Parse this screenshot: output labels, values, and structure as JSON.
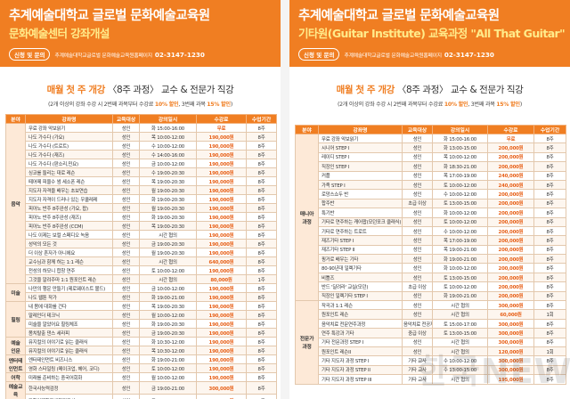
{
  "left": {
    "title": "추계예술대학교 글로벌 문화예술교육원",
    "subtitle": "문화예술센터 강좌개설",
    "contact_label": "신청 및 문의",
    "contact_text": "추계예술대학교글로벌 문화예술교육원홈페이지",
    "contact_phone": "02-3147-1230",
    "headline_em": "매월 첫 주 개강",
    "headline_rest": "〈8주 과정〉 교수 & 전문가 직강",
    "note_a": "(2개 이상의 강좌 수강 시 2번째 과목부터 수강료 ",
    "note_b": "10% 할인",
    "note_c": ", 3번째 과목 ",
    "note_d": "15% 할인",
    "note_e": ")",
    "headers": [
      "분야",
      "강좌명",
      "교육대상",
      "강의일시",
      "수강료",
      "수업기간"
    ],
    "sections": [
      {
        "category": "음악",
        "rows": [
          [
            "무료 강좌 악보읽기",
            "성인",
            "화 15:00-16:00",
            "무료",
            "8주"
          ],
          [
            "나도 가수다 (가요)",
            "성인",
            "목 10:00-12:00",
            "190,000원",
            "8주"
          ],
          [
            "나도 가수다 (트로트)",
            "성인",
            "수 10:00-12:00",
            "190,000원",
            "8주"
          ],
          [
            "나도 가수다 (재즈)",
            "성인",
            "수 14:00-16:00",
            "190,000원",
            "8주"
          ],
          [
            "나도 가수다 (판소리,민요)",
            "성인",
            "금 10:00-12:00",
            "190,000원",
            "8주"
          ],
          [
            "싱코를 들리는 대로 레슨",
            "성인",
            "수 19:00-20:30",
            "190,000원",
            "8주"
          ],
          [
            "떼어떼 피울수 썸 세소폰 레슨",
            "성인",
            "목 19:00-20:30",
            "190,000원",
            "8주"
          ],
          [
            "지도자 자격을 배우는 초보연습",
            "성인",
            "월 19:00-20:30",
            "190,000원",
            "8주"
          ],
          [
            "지도자 자격이 드러나 있는 우쿨레레",
            "성인",
            "화 19:00-20:30",
            "190,000원",
            "8주"
          ],
          [
            "피아노 반주 8주완성 (가요, 팝)",
            "성인",
            "월 19:00-20:30",
            "190,000원",
            "8주"
          ],
          [
            "피아노 반주 8주완성 (재즈)",
            "성인",
            "화 19:00-20:30",
            "190,000원",
            "8주"
          ],
          [
            "피아노 반주 8주완성 (CCM)",
            "성인",
            "목 19:00-20:30",
            "190,000원",
            "8주"
          ],
          [
            "나도 이제는 보컬 스페디오 녹음",
            "성인",
            "시간 협의",
            "190,000원",
            "8주"
          ],
          [
            "성악의 모든 것",
            "성인",
            "금 19:00-20:30",
            "190,000원",
            "8주"
          ],
          [
            "더 이상 혼자가 아니에요",
            "성인",
            "월 19:00-20:30",
            "190,000원",
            "8주"
          ],
          [
            "교수님과 함께 하는 1:1 레슨",
            "성인",
            "시간 협의",
            "640,000원",
            "8주"
          ],
          [
            "전성의 하모니 합창 연주",
            "성인",
            "토 10:00-12:00",
            "190,000원",
            "8주"
          ],
          [
            "그것을 알려주마 1:1 원포인트 레슨",
            "성인",
            "시간 협의",
            "80,000원",
            "1주"
          ]
        ]
      },
      {
        "category": "미술",
        "rows": [
          [
            "나만의 행운 만들기 (제로웨이스트 볼드)",
            "성인",
            "금 10:00-12:00",
            "190,000원",
            "8주"
          ],
          [
            "나도 웹툰 작가",
            "성인",
            "화 19:00-21:00",
            "190,000원",
            "8주"
          ]
        ]
      },
      {
        "category": "힐링",
        "rows": [
          [
            "내 몸에 대화를 건다",
            "성인",
            "목 19:00-20:30",
            "190,000원",
            "8주"
          ],
          [
            "말레인더 테크닉",
            "성인",
            "월 10:00-12:00",
            "190,000원",
            "8주"
          ],
          [
            "미술을 알았어요 힐링체조",
            "성인",
            "화 19:00-20:30",
            "190,000원",
            "8주"
          ],
          [
            "몸치탈출 댄스 세라피",
            "성인",
            "금 19:00-20:30",
            "190,000원",
            "8주"
          ]
        ]
      },
      {
        "category": "예술\n인문",
        "rows": [
          [
            "뮤지컬의 이야기로 읽는 클래식",
            "성인",
            "화 10:30-12:00",
            "190,000원",
            "8주"
          ],
          [
            "뮤지컬의 이야기로 읽는 클래식",
            "성인",
            "목 10:30-12:00",
            "190,000원",
            "8주"
          ]
        ]
      },
      {
        "category": "엔터테인먼트",
        "rows": [
          [
            "엔터테인먼트 비즈니스",
            "성인",
            "화 19:00-21:00",
            "190,000원",
            "8주"
          ],
          [
            "영화 스타일링 (메이크업, 헤어, 코디)",
            "성인",
            "토 10:00-12:00",
            "190,000원",
            "8주"
          ]
        ]
      },
      {
        "category": "어학",
        "rows": [
          [
            "미래를 준비하는 중국어회화",
            "성인",
            "월 10:00-12:00",
            "190,000원",
            "8주"
          ]
        ]
      },
      {
        "category": "예술교육\n자격증",
        "rows": [
          [
            "한국사능력검정",
            "성인",
            "금 19:00-21:00",
            "300,000원",
            "8주"
          ],
          [
            "과학영재창작체험지도사",
            "성인",
            "토 10:00-12:00",
            "300,000원",
            "8주"
          ]
        ]
      }
    ]
  },
  "right": {
    "title": "추계예술대학교 글로벌 문화예술교육원",
    "subtitle": "기타원(Guitar Institute) 교육과정 \"All That Guitar\"",
    "contact_label": "신청 및 문의",
    "contact_text": "추계예술대학교글로벌 문화예술교육원홈페이지",
    "contact_phone": "02-3147-1230",
    "headline_em": "매월 첫 주 개강",
    "headline_rest": "〈8주 과정〉 교수 & 전문가 직강",
    "note_a": "(2개 이상의 강좌 수강 시 2번째 과목부터 수강료 ",
    "note_b": "10% 할인",
    "note_c": ", 3번째 과목 ",
    "note_d": "15% 할인",
    "note_e": ")",
    "headers": [
      "분야",
      "강좌명",
      "교육대상",
      "강의일시",
      "수강료",
      "수업기간"
    ],
    "sections": [
      {
        "category": "매니아\n과정",
        "rows": [
          [
            "무료 강좌 악보읽기",
            "성인",
            "화 15:00-16:00",
            "무료",
            "8주"
          ],
          [
            "시니어 STEP I",
            "성인",
            "화 13:00-15:00",
            "200,000원",
            "8주"
          ],
          [
            "레이디 STEP I",
            "성인",
            "목 10:00-12:00",
            "200,000원",
            "8주"
          ],
          [
            "직장인 STEP I",
            "성인",
            "화 18:30-21:00",
            "200,000원",
            "8주"
          ],
          [
            "커플",
            "성인",
            "목 17:00-19:00",
            "240,000원",
            "8주"
          ],
          [
            "가족 STEP I",
            "성인",
            "토 10:00-12:00",
            "240,000원",
            "8주"
          ],
          [
            "로망스쇼두 반",
            "성인",
            "수 10:00-12:00",
            "200,000원",
            "8주"
          ],
          [
            "합주반",
            "초급 이상",
            "토 13:00-15:00",
            "200,000원",
            "8주"
          ],
          [
            "특기반",
            "성인",
            "화 10:00-12:00",
            "200,000원",
            "8주"
          ],
          [
            "기타로 연주하는 캐어팝(모던포크 클래식)",
            "성인",
            "토 10:00-12:00",
            "200,000원",
            "8주"
          ],
          [
            "기타로 연주하는 트로트",
            "성인",
            "수 10:00-12:00",
            "200,000원",
            "8주"
          ],
          [
            "재즈기타 STEP I",
            "성인",
            "목 17:00-19:00",
            "200,000원",
            "8주"
          ],
          [
            "재즈기타 STEP II",
            "성인",
            "목 19:00-21:00",
            "200,000원",
            "8주"
          ],
          [
            "핑거로 배우는 기타",
            "성인",
            "화 19:00-21:00",
            "200,000원",
            "8주"
          ],
          [
            "80-90년대 일렉기타",
            "성인",
            "화 10:00-12:00",
            "200,000원",
            "8주"
          ],
          [
            "비틀즈",
            "성인",
            "토 13:00-15:00",
            "200,000원",
            "8주"
          ],
          [
            "반드 '달려라' 교실(모던)",
            "초급 이상",
            "토 10:00-12:00",
            "200,000원",
            "8주"
          ],
          [
            "직장인 일렉기타 STEP I",
            "성인",
            "화 19:00-21:00",
            "200,000원",
            "8주"
          ]
        ]
      },
      {
        "category": "전문가\n과정",
        "rows": [
          [
            "작곡과 1:1 레슨",
            "성인",
            "시간 협의",
            "300,000원",
            "8주"
          ],
          [
            "원포인트 레슨",
            "성인",
            "시간 협의",
            "60,000원",
            "1회"
          ],
          [
            "음악치료 전문연주과정",
            "음악치료 전공자",
            "토 15:00-17:00",
            "300,000원",
            "8주"
          ],
          [
            "연주 특강과 기타",
            "중급 이상",
            "토 13:00-15:00",
            "300,000원",
            "8주"
          ],
          [
            "기타 전문과정 STEP I",
            "성인",
            "시간 협의",
            "300,000원",
            "8주"
          ],
          [
            "원포인트 레슨II",
            "성인",
            "시간 협의",
            "120,000원",
            "1회"
          ],
          [
            "기타 지도자 과정 STEP I",
            "기타 교사",
            "수 10:00-12:00",
            "300,000원",
            "8주"
          ],
          [
            "기타 지도자 과정 STEP II",
            "기타 교사",
            "수 13:00-15:00",
            "300,000원",
            "8주"
          ],
          [
            "기타 지도자 과정 STEP III",
            "기타 교사",
            "시간 협의",
            "195,000원",
            "8주"
          ]
        ]
      }
    ]
  },
  "watermark": "한국NEWS"
}
